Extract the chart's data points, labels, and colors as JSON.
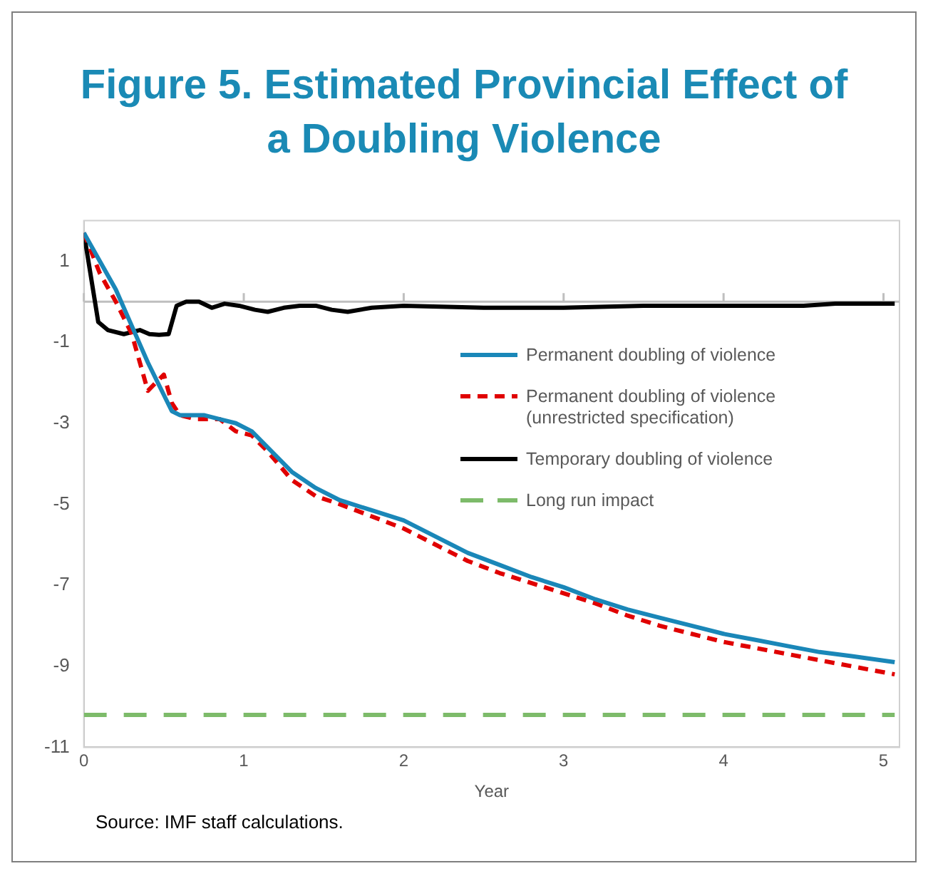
{
  "chart_data": {
    "type": "line",
    "title": "Figure 5. Estimated Provincial Effect of a Doubling Violence",
    "xlabel": "Year",
    "xlim": [
      0,
      5.1
    ],
    "xticks": [
      0,
      1,
      2,
      3,
      4,
      5
    ],
    "ylim": [
      -11,
      2
    ],
    "yticks": [
      1,
      -1,
      -3,
      -5,
      -7,
      -9,
      -11
    ],
    "grid": false,
    "legend": "right",
    "marker": "none",
    "ref_lines": [
      {
        "axis": "y",
        "value": 0,
        "color": "#bfbfbf"
      }
    ],
    "annotations": [
      "Source: IMF staff calculations."
    ],
    "series": [
      {
        "name": "Permanent doubling of violence",
        "color": "#1a87b8",
        "line_style": "solid",
        "x": [
          0,
          0.1,
          0.2,
          0.3,
          0.4,
          0.5,
          0.55,
          0.6,
          0.75,
          0.85,
          0.95,
          1.05,
          1.15,
          1.3,
          1.45,
          1.6,
          1.8,
          2.0,
          2.2,
          2.4,
          2.6,
          2.8,
          3.0,
          3.2,
          3.4,
          3.6,
          3.8,
          4.0,
          4.2,
          4.4,
          4.6,
          4.8,
          5.07
        ],
        "values": [
          1.7,
          1.0,
          0.3,
          -0.6,
          -1.5,
          -2.3,
          -2.7,
          -2.8,
          -2.8,
          -2.9,
          -3.0,
          -3.2,
          -3.6,
          -4.2,
          -4.6,
          -4.9,
          -5.15,
          -5.4,
          -5.8,
          -6.2,
          -6.5,
          -6.8,
          -7.05,
          -7.35,
          -7.6,
          -7.8,
          -8.0,
          -8.2,
          -8.35,
          -8.5,
          -8.65,
          -8.75,
          -8.9
        ]
      },
      {
        "name": "Permanent doubling of violence (unrestricted specification)",
        "color": "#e00000",
        "line_style": "dashed",
        "x": [
          0,
          0.1,
          0.2,
          0.3,
          0.35,
          0.4,
          0.45,
          0.5,
          0.55,
          0.6,
          0.7,
          0.85,
          0.95,
          1.05,
          1.15,
          1.3,
          1.45,
          1.6,
          1.8,
          2.0,
          2.2,
          2.4,
          2.6,
          2.8,
          3.0,
          3.2,
          3.4,
          3.6,
          3.8,
          4.0,
          4.2,
          4.4,
          4.6,
          4.8,
          5.07
        ],
        "values": [
          1.7,
          0.7,
          0.0,
          -0.8,
          -1.5,
          -2.2,
          -2.0,
          -1.8,
          -2.5,
          -2.8,
          -2.9,
          -2.9,
          -3.2,
          -3.3,
          -3.7,
          -4.4,
          -4.8,
          -5.0,
          -5.3,
          -5.6,
          -6.0,
          -6.4,
          -6.7,
          -6.95,
          -7.2,
          -7.45,
          -7.75,
          -8.0,
          -8.2,
          -8.4,
          -8.55,
          -8.7,
          -8.85,
          -9.0,
          -9.2
        ]
      },
      {
        "name": "Temporary doubling of violence",
        "color": "#000000",
        "line_style": "solid",
        "x": [
          0,
          0.09,
          0.15,
          0.25,
          0.3,
          0.35,
          0.41,
          0.47,
          0.53,
          0.58,
          0.64,
          0.72,
          0.8,
          0.88,
          0.97,
          1.07,
          1.15,
          1.25,
          1.35,
          1.45,
          1.55,
          1.65,
          1.8,
          2.0,
          2.5,
          3.0,
          3.5,
          4.5,
          4.7,
          5.07
        ],
        "values": [
          1.7,
          -0.5,
          -0.7,
          -0.8,
          -0.75,
          -0.7,
          -0.8,
          -0.82,
          -0.8,
          -0.1,
          0.0,
          0.0,
          -0.15,
          -0.05,
          -0.1,
          -0.2,
          -0.25,
          -0.15,
          -0.1,
          -0.1,
          -0.2,
          -0.25,
          -0.15,
          -0.1,
          -0.15,
          -0.15,
          -0.1,
          -0.1,
          -0.05,
          -0.05
        ]
      },
      {
        "name": "Long run impact",
        "color": "#7dbb6a",
        "line_style": "dashed",
        "x": [
          0,
          5.07
        ],
        "values": [
          -10.2,
          -10.2
        ]
      }
    ]
  }
}
